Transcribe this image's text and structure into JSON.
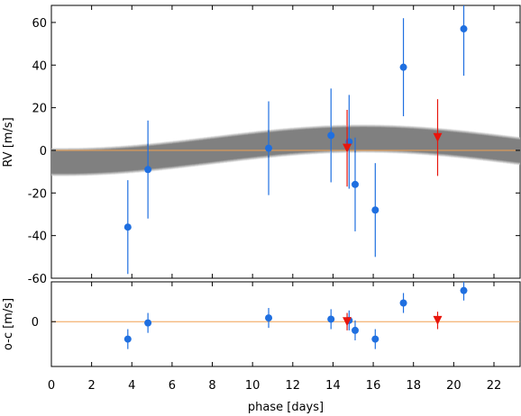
{
  "chart_data": [
    {
      "type": "scatter",
      "panel": "rv",
      "ylabel": "RV [m/s]",
      "xlim": [
        0,
        23.3
      ],
      "ylim": [
        -60,
        68
      ],
      "yticks": [
        -60,
        -40,
        -20,
        0,
        20,
        40,
        60
      ],
      "colors": {
        "series_a": "#1f6fe0",
        "series_b": "#e8150c",
        "model_band": "#808080",
        "model_line": "#f0a050"
      },
      "model": {
        "band_half_width": 6,
        "mean": 0,
        "amplitude": 5.5,
        "period": 30,
        "phase": 8
      },
      "series": [
        {
          "marker": "circle",
          "x": [
            3.8,
            4.8,
            10.8,
            13.9,
            14.8,
            15.1,
            16.1,
            17.5,
            20.5
          ],
          "y": [
            -36,
            -9,
            1,
            7,
            4,
            -16,
            -28,
            39,
            57
          ],
          "yerr": [
            22,
            23,
            22,
            22,
            22,
            22,
            22,
            23,
            22
          ]
        },
        {
          "marker": "triangle-down",
          "x": [
            14.7,
            19.2
          ],
          "y": [
            1,
            6
          ],
          "yerr": [
            18,
            18
          ]
        }
      ]
    },
    {
      "type": "scatter",
      "panel": "residuals",
      "xlabel": "phase [days]",
      "ylabel": "o-c [m/s]",
      "xlim": [
        0,
        23.3
      ],
      "ylim": [
        -18,
        16
      ],
      "yticks": [
        0
      ],
      "xticks": [
        0,
        2,
        4,
        6,
        8,
        10,
        12,
        14,
        16,
        18,
        20,
        22
      ],
      "series": [
        {
          "marker": "circle",
          "x": [
            3.8,
            4.8,
            10.8,
            13.9,
            14.8,
            15.1,
            16.1,
            17.5,
            20.5
          ],
          "y": [
            -7,
            -0.5,
            1.5,
            1,
            0.5,
            -3.5,
            -7,
            7.5,
            12.5
          ],
          "yerr": [
            4,
            4,
            4,
            4,
            4,
            4,
            4,
            4,
            4
          ]
        },
        {
          "marker": "triangle-down",
          "x": [
            14.7,
            19.2
          ],
          "y": [
            0,
            0.5
          ],
          "yerr": [
            3.5,
            3.5
          ]
        }
      ]
    }
  ]
}
